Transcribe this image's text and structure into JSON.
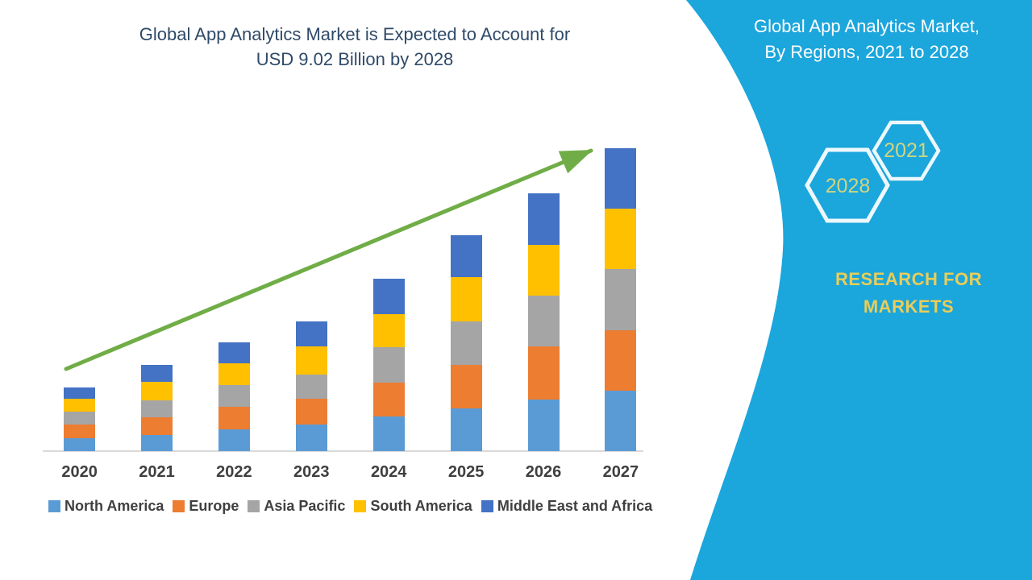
{
  "chart": {
    "title_lines": [
      "Global App Analytics Market is Expected to Account for",
      "USD 9.02 Billion by 2028"
    ],
    "title_color": "#2F4A68",
    "axis_line_color": "#D9D9D9",
    "label_color": "#3F3F3F",
    "arrow_color": "#70AD47"
  },
  "chart_data": {
    "type": "bar",
    "stacked": true,
    "title": "Global App Analytics Market is Expected to Account for USD 9.02 Billion by 2028",
    "xlabel": "",
    "ylabel": "",
    "value_axis_visible": false,
    "units": "relative height (no value axis shown in figure)",
    "legend_position": "bottom",
    "annotations": [
      "green upward trend arrow from 2020 toward 2027"
    ],
    "categories": [
      "2020",
      "2021",
      "2022",
      "2023",
      "2024",
      "2025",
      "2026",
      "2027"
    ],
    "series": [
      {
        "name": "North America",
        "color": "#5B9BD5",
        "values": [
          16,
          20,
          27,
          33,
          43,
          53,
          64,
          75
        ]
      },
      {
        "name": "Europe",
        "color": "#ED7D31",
        "values": [
          17,
          22,
          28,
          32,
          42,
          54,
          66,
          75
        ]
      },
      {
        "name": "Asia Pacific",
        "color": "#A5A5A5",
        "values": [
          16,
          21,
          27,
          30,
          44,
          54,
          63,
          76
        ]
      },
      {
        "name": "South America",
        "color": "#FFC000",
        "values": [
          16,
          23,
          27,
          35,
          41,
          55,
          63,
          75
        ]
      },
      {
        "name": "Middle East and Africa",
        "color": "#4472C4",
        "values": [
          14,
          21,
          26,
          31,
          44,
          52,
          64,
          75
        ]
      }
    ]
  },
  "panel": {
    "background": "#1BA6DC",
    "title_lines": [
      "Global App Analytics Market,",
      "By Regions, 2021 to 2028"
    ],
    "title_color": "#FFFFFF",
    "hexagon_outline": "#EDF8FC",
    "hexagon_label_color": "#D0D580",
    "hexagons": [
      {
        "label": "2021"
      },
      {
        "label": "2028"
      }
    ],
    "brand_lines": [
      "RESEARCH FOR",
      "MARKETS"
    ],
    "brand_color": "#EACD58"
  }
}
